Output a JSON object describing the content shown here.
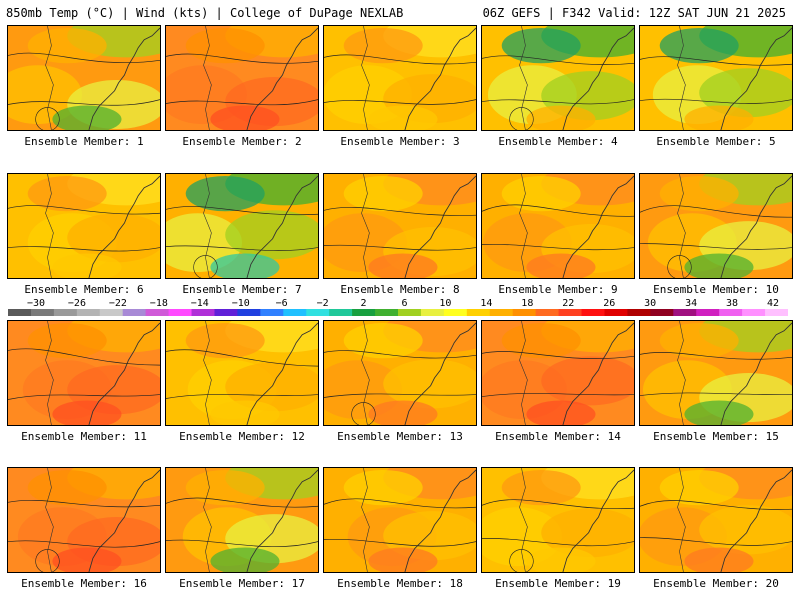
{
  "header": {
    "left_title": "850mb Temp (°C) | Wind (kts) | College of DuPage NEXLAB",
    "right_title": "06Z GEFS | F342 Valid: 12Z SAT JUN 21 2025"
  },
  "colorbar": {
    "labels": [
      "−30",
      "−26",
      "−22",
      "−18",
      "−14",
      "−10",
      "−6",
      "−2",
      "2",
      "6",
      "10",
      "14",
      "18",
      "22",
      "26",
      "30",
      "34",
      "38",
      "42"
    ],
    "colors": [
      "#5a5a5a",
      "#7a7a7a",
      "#9a9a9a",
      "#b4b4b4",
      "#c9c9c9",
      "#a88ad6",
      "#d05ad8",
      "#ff4aff",
      "#b030d8",
      "#6020d8",
      "#2040e0",
      "#3080ff",
      "#20c0ff",
      "#30e0e0",
      "#20c89a",
      "#18a040",
      "#40b030",
      "#a0d020",
      "#e8f040",
      "#ffff20",
      "#ffd000",
      "#ffb000",
      "#ff9000",
      "#ff6a20",
      "#ff4020",
      "#ff1010",
      "#e00000",
      "#b00000",
      "#900020",
      "#a01080",
      "#d020c0",
      "#f060f0",
      "#ff90ff",
      "#ffc0ff"
    ]
  },
  "members": [
    {
      "label": "Ensemble Member: 1",
      "scheme": "warmgreen"
    },
    {
      "label": "Ensemble Member: 2",
      "scheme": "hot"
    },
    {
      "label": "Ensemble Member: 3",
      "scheme": "mild"
    },
    {
      "label": "Ensemble Member: 4",
      "scheme": "cool"
    },
    {
      "label": "Ensemble Member: 5",
      "scheme": "cool"
    },
    {
      "label": "Ensemble Member: 6",
      "scheme": "mild"
    },
    {
      "label": "Ensemble Member: 7",
      "scheme": "cold"
    },
    {
      "label": "Ensemble Member: 8",
      "scheme": "warm"
    },
    {
      "label": "Ensemble Member: 9",
      "scheme": "warm"
    },
    {
      "label": "Ensemble Member: 10",
      "scheme": "warmgreen"
    },
    {
      "label": "Ensemble Member: 11",
      "scheme": "hot"
    },
    {
      "label": "Ensemble Member: 12",
      "scheme": "mild"
    },
    {
      "label": "Ensemble Member: 13",
      "scheme": "warm"
    },
    {
      "label": "Ensemble Member: 14",
      "scheme": "hot"
    },
    {
      "label": "Ensemble Member: 15",
      "scheme": "warmgreen"
    },
    {
      "label": "Ensemble Member: 16",
      "scheme": "hot"
    },
    {
      "label": "Ensemble Member: 17",
      "scheme": "warmgreen"
    },
    {
      "label": "Ensemble Member: 18",
      "scheme": "warm"
    },
    {
      "label": "Ensemble Member: 19",
      "scheme": "mild"
    },
    {
      "label": "Ensemble Member: 20",
      "scheme": "warm"
    }
  ]
}
